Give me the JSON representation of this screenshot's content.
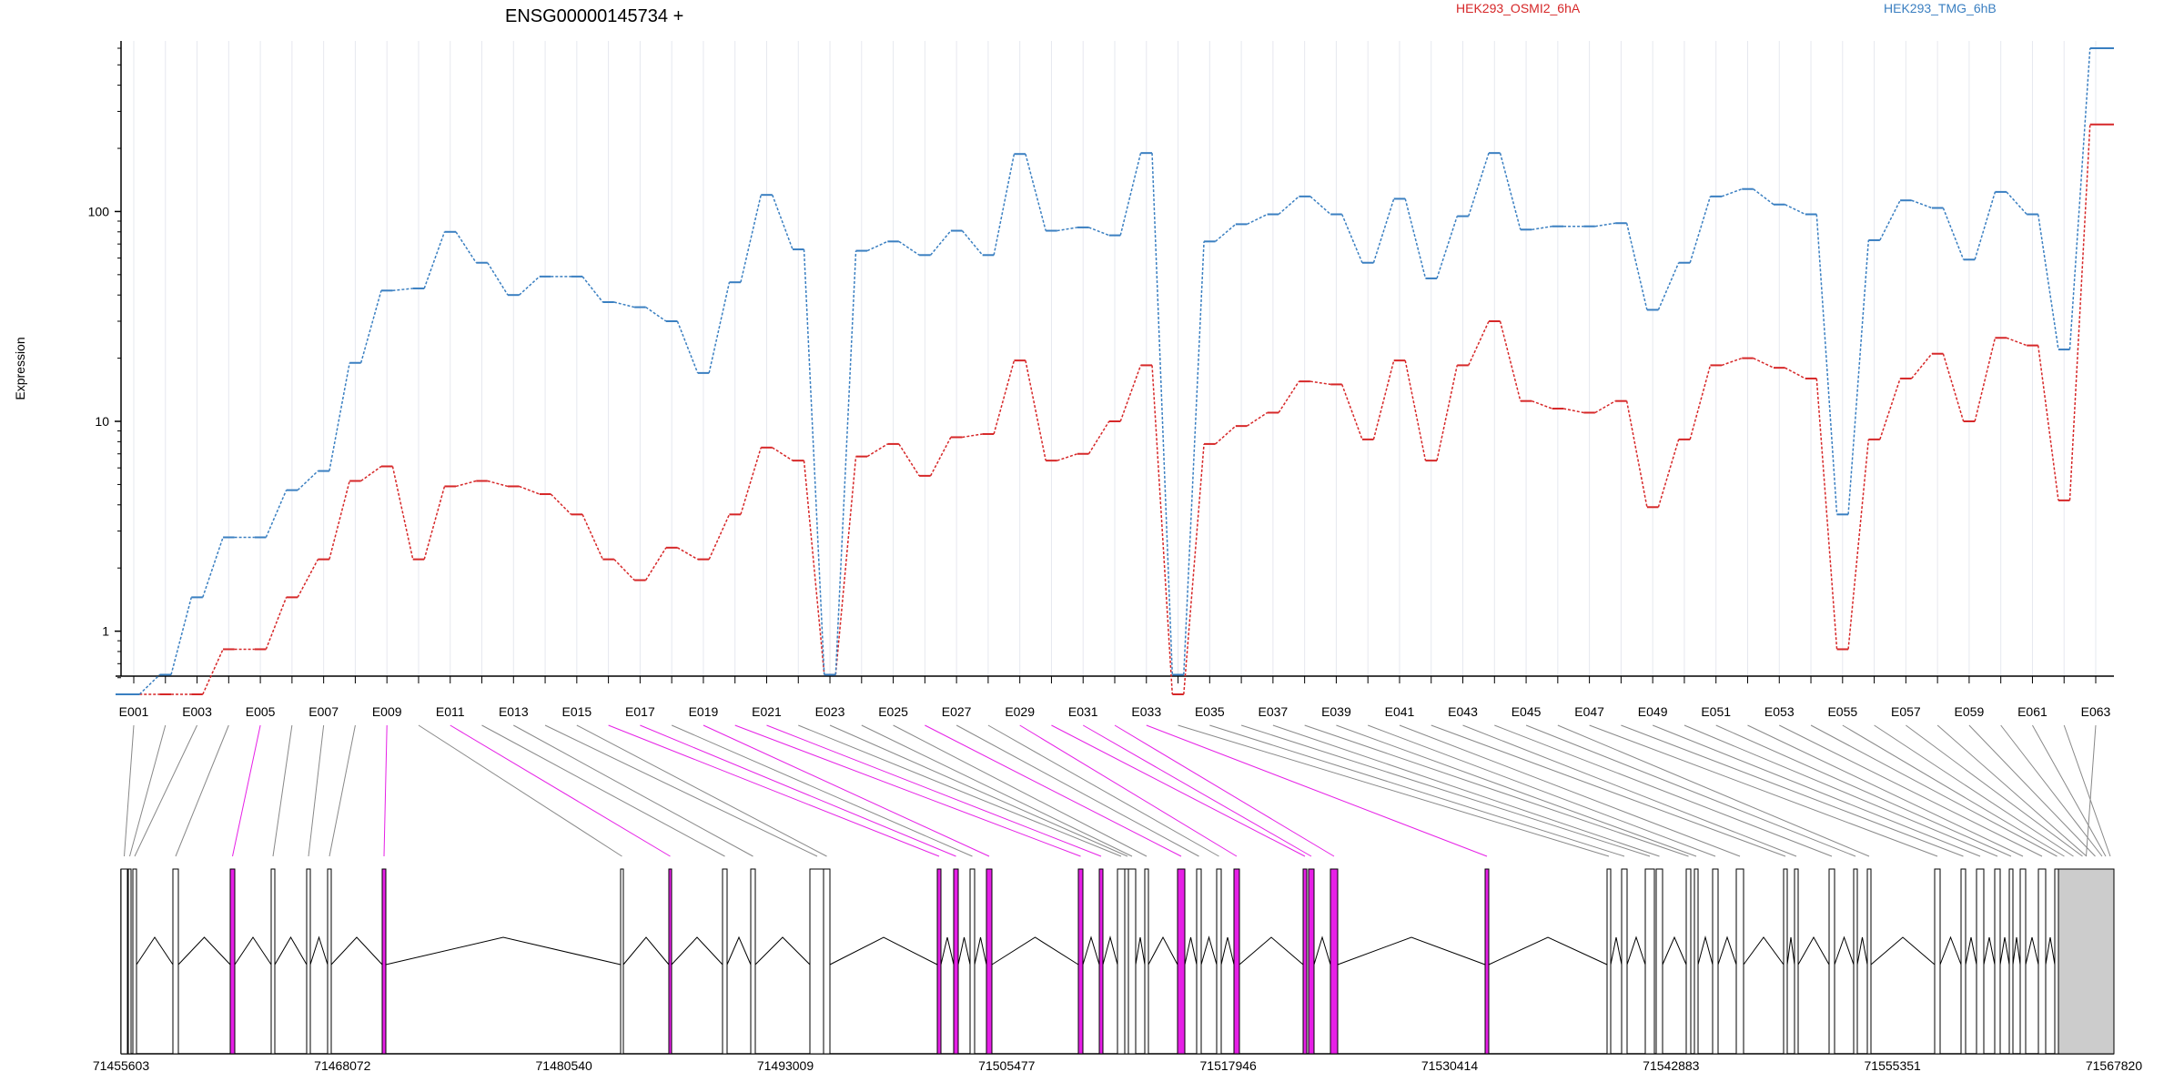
{
  "chart_data": {
    "type": "line",
    "title": "ENSG00000145734 +",
    "ylabel": "Expression",
    "yscale": "log",
    "yticks": [
      1,
      10,
      100
    ],
    "ylim": [
      0.5,
      650
    ],
    "grid": "vertical",
    "legend_placement": "top",
    "categories": [
      "E001",
      "E002",
      "E003",
      "E004",
      "E005",
      "E006",
      "E007",
      "E008",
      "E009",
      "E010",
      "E011",
      "E012",
      "E013",
      "E014",
      "E015",
      "E016",
      "E017",
      "E018",
      "E019",
      "E020",
      "E021",
      "E022",
      "E023",
      "E024",
      "E025",
      "E026",
      "E027",
      "E028",
      "E029",
      "E030",
      "E031",
      "E032",
      "E033",
      "E034",
      "E035",
      "E036",
      "E037",
      "E038",
      "E039",
      "E040",
      "E041",
      "E042",
      "E043",
      "E044",
      "E045",
      "E046",
      "E047",
      "E048",
      "E049",
      "E050",
      "E051",
      "E052",
      "E053",
      "E054",
      "E055",
      "E056",
      "E057",
      "E058",
      "E059",
      "E060",
      "E061",
      "E062",
      "E063"
    ],
    "series": [
      {
        "name": "HEK293_OSMI2_6hA",
        "color": "#d62728",
        "values": [
          0.5,
          0.5,
          0.5,
          0.82,
          0.82,
          1.45,
          2.2,
          5.2,
          6.1,
          2.2,
          4.9,
          5.2,
          4.9,
          4.5,
          3.6,
          2.2,
          1.75,
          2.5,
          2.2,
          3.6,
          7.5,
          6.5,
          0.62,
          6.8,
          7.8,
          5.5,
          8.4,
          8.7,
          19.5,
          6.5,
          7.0,
          10,
          18.5,
          0.5,
          7.8,
          9.5,
          11,
          15.5,
          15,
          8.2,
          19.5,
          6.5,
          18.5,
          30,
          12.5,
          11.5,
          11,
          12.5,
          3.9,
          8.2,
          18.5,
          20,
          18,
          16,
          0.82,
          8.2,
          16,
          21,
          10,
          25,
          23,
          4.2,
          260
        ]
      },
      {
        "name": "HEK293_TMG_6hB",
        "color": "#3a7fc1",
        "values": [
          0.5,
          0.62,
          1.45,
          2.8,
          2.8,
          4.7,
          5.8,
          19,
          42,
          43,
          80,
          57,
          40,
          49,
          49,
          37,
          35,
          30,
          17,
          46,
          120,
          66,
          0.62,
          65,
          72,
          62,
          81,
          62,
          188,
          81,
          84,
          77,
          190,
          0.62,
          72,
          87,
          97,
          118,
          97,
          57,
          115,
          48,
          95,
          190,
          82,
          85,
          85,
          88,
          34,
          57,
          118,
          128,
          108,
          97,
          3.6,
          73,
          113,
          104,
          59,
          124,
          97,
          22,
          600
        ]
      }
    ]
  },
  "genome": {
    "coordinates": [
      "71455603",
      "71468072",
      "71480540",
      "71493009",
      "71505477",
      "71517946",
      "71530414",
      "71542883",
      "71555351",
      "71567820"
    ],
    "highlight_color": "#e61fe6",
    "intron_color": "#000000",
    "highlighted_exons": [
      "E005",
      "E009",
      "E011",
      "E016",
      "E017",
      "E019",
      "E020",
      "E021",
      "E026",
      "E029",
      "E030",
      "E031",
      "E032",
      "E033"
    ]
  }
}
